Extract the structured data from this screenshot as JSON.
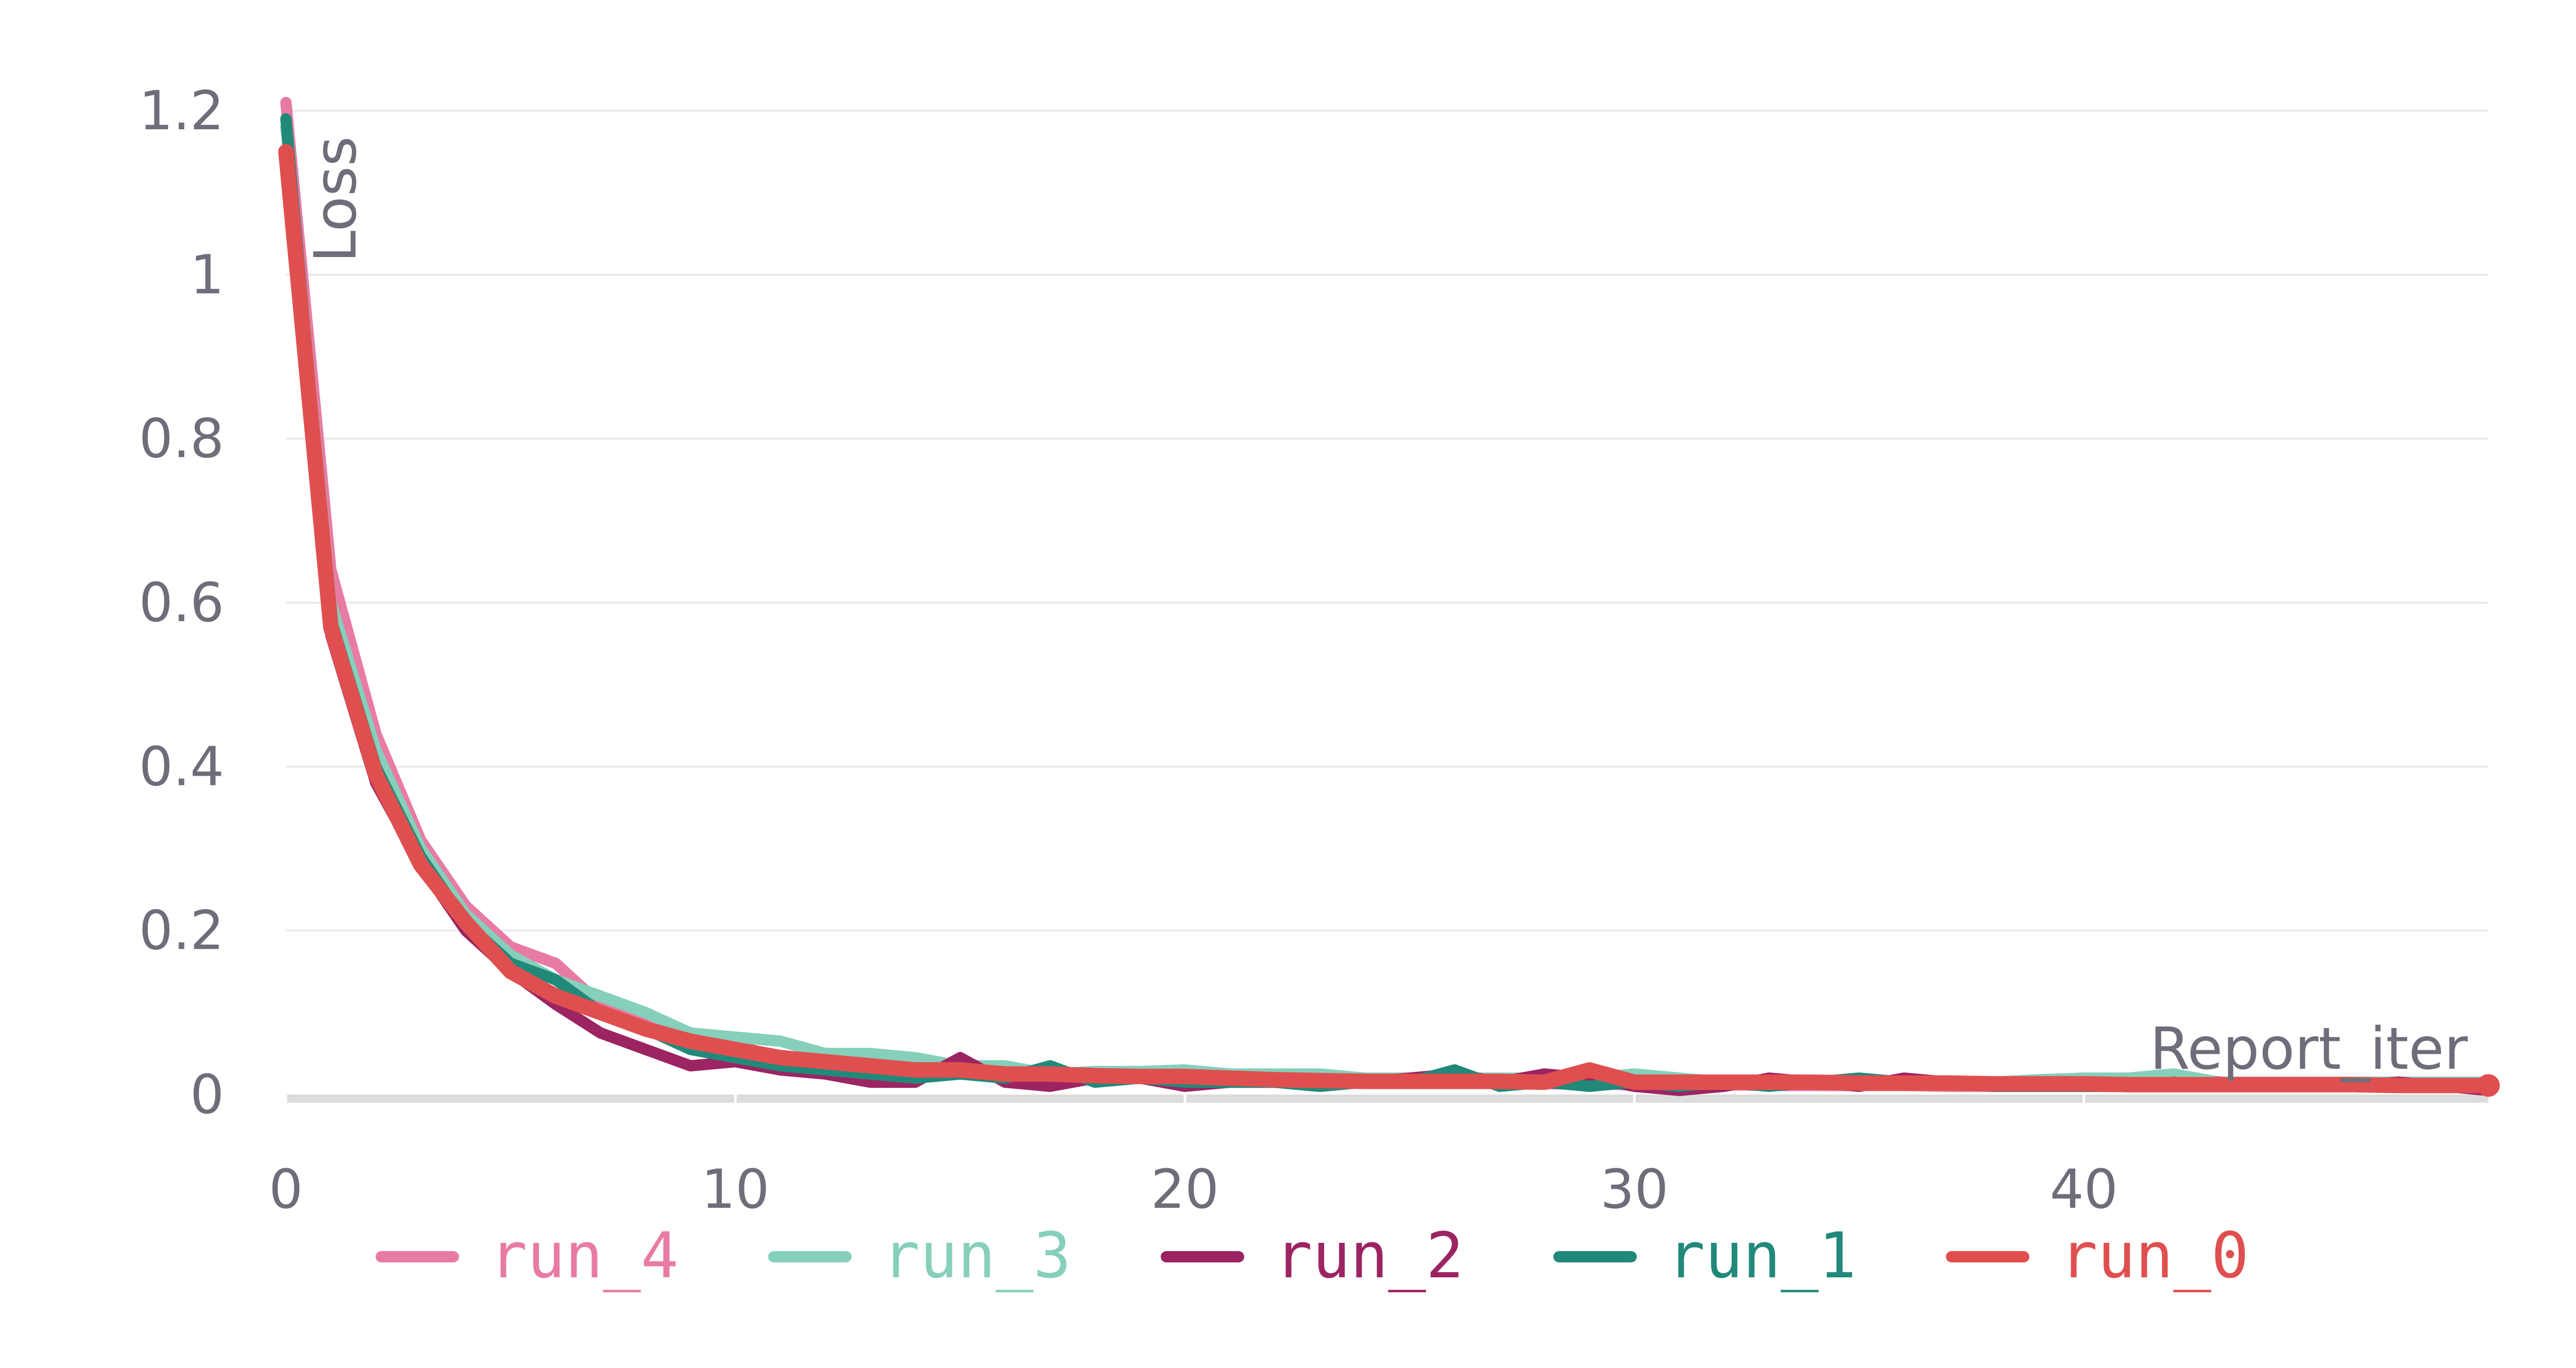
{
  "chart_data": {
    "type": "line",
    "xlabel": "Report_iter",
    "ylabel": "Loss",
    "xlim": [
      0,
      49
    ],
    "ylim": [
      0,
      1.2
    ],
    "xticks": [
      0,
      10,
      20,
      30,
      40
    ],
    "yticks": [
      0,
      0.2,
      0.4,
      0.6,
      0.8,
      1,
      1.2
    ],
    "ytick_labels": [
      "0",
      "0.2",
      "0.4",
      "0.6",
      "0.8",
      "1",
      "1.2"
    ],
    "grid": true,
    "legend_position": "bottom",
    "x": [
      0,
      1,
      2,
      3,
      4,
      5,
      6,
      7,
      8,
      9,
      10,
      11,
      12,
      13,
      14,
      15,
      16,
      17,
      18,
      19,
      20,
      21,
      22,
      23,
      24,
      25,
      26,
      27,
      28,
      29,
      30,
      31,
      32,
      33,
      34,
      35,
      36,
      37,
      38,
      39,
      40,
      41,
      42,
      43,
      44,
      45,
      46,
      47,
      48,
      49
    ],
    "series": [
      {
        "name": "run_4",
        "color": "#e87ba4",
        "values": [
          1.21,
          0.64,
          0.44,
          0.31,
          0.23,
          0.18,
          0.16,
          0.11,
          0.09,
          0.07,
          0.06,
          0.045,
          0.04,
          0.035,
          0.03,
          0.028,
          0.03,
          0.025,
          0.022,
          0.02,
          0.02,
          0.018,
          0.017,
          0.016,
          0.015,
          0.015,
          0.014,
          0.014,
          0.013,
          0.013,
          0.012,
          0.012,
          0.012,
          0.011,
          0.011,
          0.011,
          0.011,
          0.01,
          0.01,
          0.01,
          0.01,
          0.01,
          0.01,
          0.01,
          0.01,
          0.01,
          0.01,
          0.01,
          0.012,
          0.01
        ]
      },
      {
        "name": "run_3",
        "color": "#86cfbb",
        "values": [
          1.18,
          0.6,
          0.42,
          0.3,
          0.22,
          0.17,
          0.14,
          0.12,
          0.1,
          0.075,
          0.07,
          0.065,
          0.05,
          0.05,
          0.045,
          0.035,
          0.035,
          0.025,
          0.028,
          0.028,
          0.03,
          0.025,
          0.025,
          0.025,
          0.02,
          0.02,
          0.02,
          0.02,
          0.02,
          0.02,
          0.025,
          0.02,
          0.015,
          0.015,
          0.015,
          0.015,
          0.015,
          0.015,
          0.015,
          0.018,
          0.02,
          0.02,
          0.025,
          0.015,
          0.015,
          0.015,
          0.015,
          0.015,
          0.015,
          0.015
        ]
      },
      {
        "name": "run_2",
        "color": "#9c2462",
        "values": [
          1.15,
          0.56,
          0.38,
          0.28,
          0.2,
          0.15,
          0.11,
          0.075,
          0.055,
          0.035,
          0.04,
          0.03,
          0.025,
          0.015,
          0.015,
          0.045,
          0.015,
          0.01,
          0.02,
          0.02,
          0.01,
          0.015,
          0.015,
          0.01,
          0.015,
          0.02,
          0.025,
          0.015,
          0.025,
          0.02,
          0.01,
          0.005,
          0.01,
          0.02,
          0.015,
          0.01,
          0.02,
          0.015,
          0.01,
          0.01,
          0.01,
          0.01,
          0.01,
          0.015,
          0.01,
          0.01,
          0.01,
          0.015,
          0.01,
          0.005
        ]
      },
      {
        "name": "run_1",
        "color": "#21897a",
        "values": [
          1.19,
          0.58,
          0.4,
          0.29,
          0.21,
          0.16,
          0.14,
          0.1,
          0.08,
          0.055,
          0.045,
          0.035,
          0.03,
          0.025,
          0.02,
          0.025,
          0.02,
          0.035,
          0.015,
          0.02,
          0.015,
          0.015,
          0.015,
          0.01,
          0.015,
          0.015,
          0.03,
          0.01,
          0.015,
          0.01,
          0.015,
          0.01,
          0.015,
          0.01,
          0.015,
          0.02,
          0.015,
          0.015,
          0.01,
          0.01,
          0.01,
          0.01,
          0.015,
          0.01,
          0.01,
          0.01,
          0.01,
          0.01,
          0.01,
          0.01
        ]
      },
      {
        "name": "run_0",
        "color": "#e04f4f",
        "values": [
          1.15,
          0.57,
          0.39,
          0.28,
          0.21,
          0.15,
          0.12,
          0.1,
          0.08,
          0.065,
          0.055,
          0.045,
          0.04,
          0.035,
          0.03,
          0.03,
          0.025,
          0.025,
          0.023,
          0.022,
          0.022,
          0.02,
          0.018,
          0.017,
          0.016,
          0.016,
          0.016,
          0.016,
          0.015,
          0.03,
          0.015,
          0.015,
          0.015,
          0.015,
          0.015,
          0.014,
          0.014,
          0.014,
          0.013,
          0.013,
          0.013,
          0.012,
          0.012,
          0.012,
          0.012,
          0.012,
          0.012,
          0.011,
          0.011,
          0.011
        ]
      }
    ]
  }
}
